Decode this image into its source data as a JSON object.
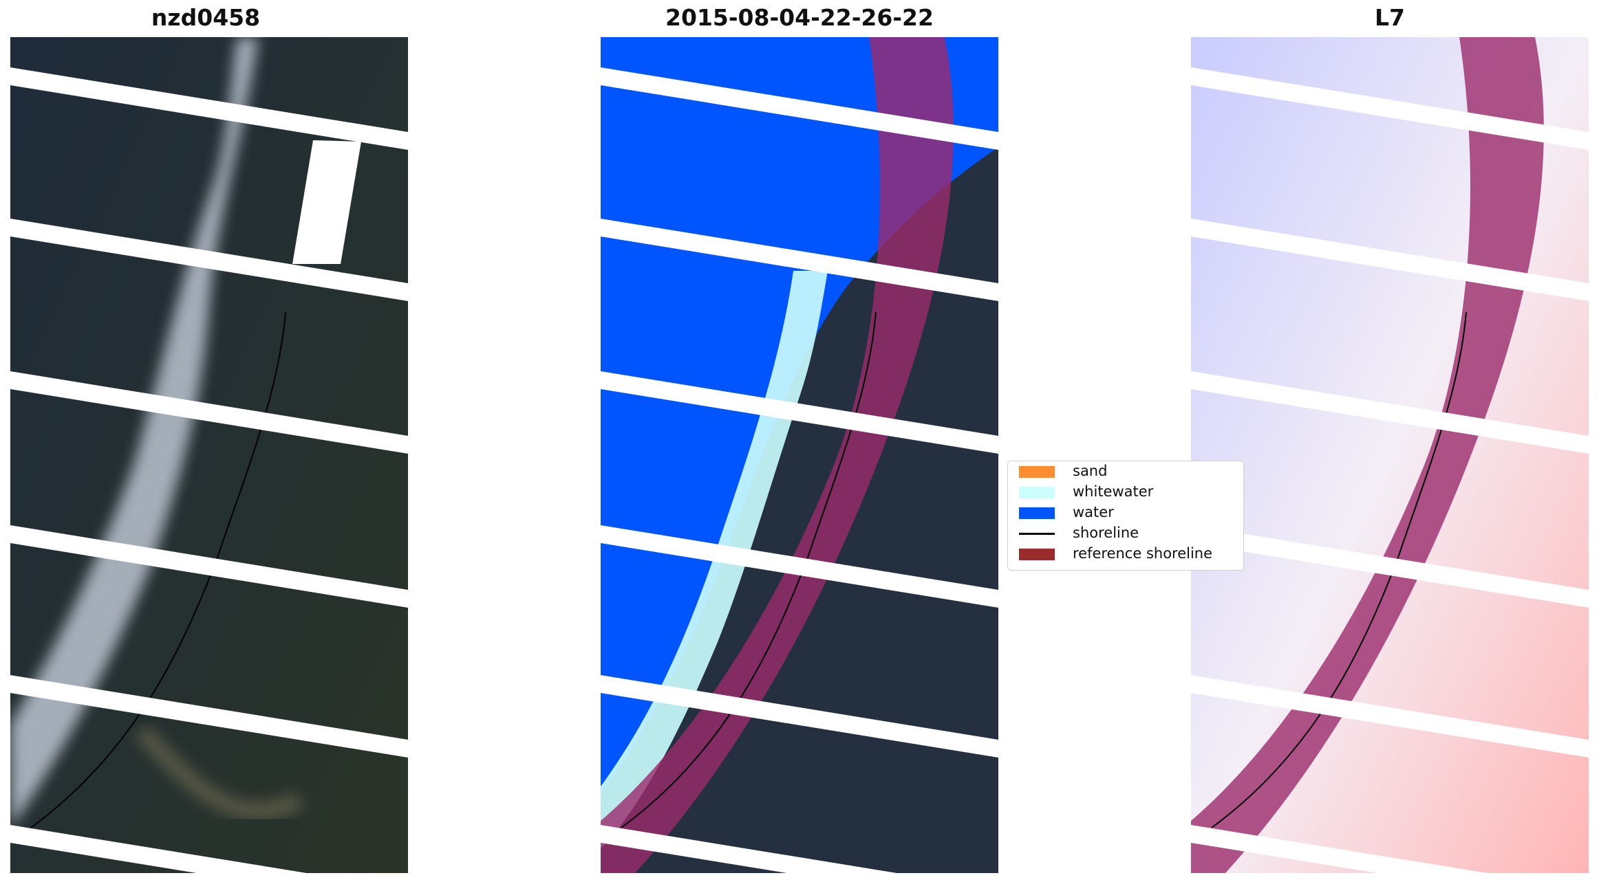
{
  "panels": [
    {
      "title": "nzd0458",
      "kind": "rgb-image"
    },
    {
      "title": "2015-08-04-22-26-22",
      "kind": "classified-image"
    },
    {
      "title": "L7",
      "kind": "index-image"
    }
  ],
  "legend": {
    "items": [
      {
        "label": "sand",
        "color": "#ff8c2e"
      },
      {
        "label": "whitewater",
        "color": "#ccffff"
      },
      {
        "label": "water",
        "color": "#0055ff"
      },
      {
        "label": "shoreline",
        "color": "#000000"
      },
      {
        "label": "reference shoreline",
        "color": "#9b2b2b"
      }
    ]
  },
  "colors": {
    "dark_land": "#243040",
    "cloud": "#c5cedb",
    "buffer_overlay": "#9b2b6b",
    "index_low": "#4d4dff",
    "index_high": "#ff8080"
  }
}
